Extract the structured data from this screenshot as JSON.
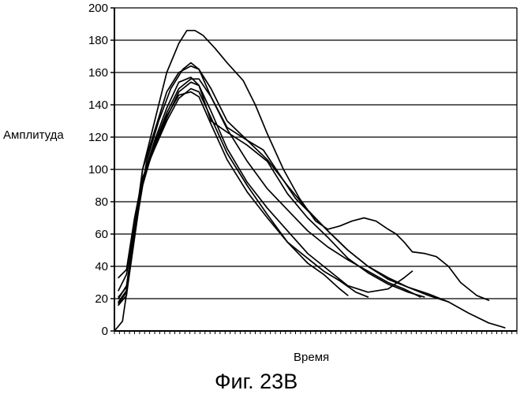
{
  "chart_data": {
    "type": "line",
    "title": "",
    "caption": "Фиг. 23B",
    "xlabel": "Время",
    "ylabel": "Амплитуда",
    "ylim": [
      0,
      200
    ],
    "yticks": [
      0,
      20,
      40,
      60,
      80,
      100,
      120,
      140,
      160,
      180,
      200
    ],
    "xlim": [
      0,
      100
    ],
    "x_tick_count": 80,
    "grid": true,
    "legend": "none",
    "line_color": "#000000",
    "series": [
      {
        "points": [
          [
            1,
            33
          ],
          [
            3,
            38
          ],
          [
            5,
            70
          ],
          [
            7,
            95
          ],
          [
            10,
            113
          ],
          [
            13,
            130
          ],
          [
            16,
            144
          ],
          [
            19,
            150
          ],
          [
            21,
            148
          ],
          [
            24,
            132
          ],
          [
            28,
            110
          ],
          [
            33,
            90
          ],
          [
            38,
            72
          ],
          [
            43,
            55
          ],
          [
            48,
            42
          ],
          [
            52,
            35
          ],
          [
            56,
            26
          ],
          [
            58,
            22
          ]
        ]
      },
      {
        "points": [
          [
            1,
            20
          ],
          [
            3,
            28
          ],
          [
            5,
            62
          ],
          [
            7,
            92
          ],
          [
            10,
            115
          ],
          [
            13,
            133
          ],
          [
            16,
            146
          ],
          [
            19,
            148
          ],
          [
            21,
            145
          ],
          [
            24,
            128
          ],
          [
            28,
            106
          ],
          [
            33,
            86
          ],
          [
            38,
            70
          ],
          [
            43,
            55
          ],
          [
            48,
            45
          ],
          [
            52,
            37
          ],
          [
            56,
            31
          ],
          [
            60,
            24
          ],
          [
            63,
            21
          ]
        ]
      },
      {
        "points": [
          [
            1,
            25
          ],
          [
            3,
            35
          ],
          [
            5,
            65
          ],
          [
            7,
            93
          ],
          [
            10,
            114
          ],
          [
            13,
            132
          ],
          [
            16,
            148
          ],
          [
            19,
            154
          ],
          [
            21,
            152
          ],
          [
            24,
            136
          ],
          [
            28,
            113
          ],
          [
            33,
            92
          ],
          [
            38,
            76
          ],
          [
            43,
            62
          ],
          [
            48,
            48
          ],
          [
            53,
            38
          ],
          [
            58,
            28
          ],
          [
            63,
            24
          ],
          [
            68,
            26
          ],
          [
            72,
            33
          ],
          [
            74,
            37
          ]
        ]
      },
      {
        "points": [
          [
            1,
            18
          ],
          [
            3,
            25
          ],
          [
            5,
            60
          ],
          [
            7,
            90
          ],
          [
            10,
            116
          ],
          [
            13,
            135
          ],
          [
            16,
            150
          ],
          [
            19,
            156
          ],
          [
            21,
            156
          ],
          [
            24,
            145
          ],
          [
            28,
            125
          ],
          [
            33,
            105
          ],
          [
            38,
            88
          ],
          [
            43,
            75
          ],
          [
            48,
            62
          ],
          [
            53,
            52
          ],
          [
            58,
            44
          ],
          [
            63,
            37
          ],
          [
            68,
            30
          ],
          [
            72,
            26
          ],
          [
            76,
            21
          ]
        ]
      },
      {
        "points": [
          [
            1,
            21
          ],
          [
            3,
            27
          ],
          [
            5,
            63
          ],
          [
            7,
            94
          ],
          [
            10,
            118
          ],
          [
            13,
            138
          ],
          [
            16,
            154
          ],
          [
            19,
            157
          ],
          [
            21,
            152
          ],
          [
            24,
            130
          ],
          [
            28,
            123
          ],
          [
            33,
            115
          ],
          [
            38,
            105
          ],
          [
            43,
            85
          ],
          [
            48,
            70
          ],
          [
            53,
            58
          ],
          [
            58,
            45
          ],
          [
            63,
            36
          ],
          [
            68,
            29
          ],
          [
            73,
            24
          ],
          [
            77,
            21
          ]
        ]
      },
      {
        "points": [
          [
            1,
            17
          ],
          [
            3,
            24
          ],
          [
            5,
            64
          ],
          [
            7,
            100
          ],
          [
            10,
            124
          ],
          [
            13,
            148
          ],
          [
            16,
            160
          ],
          [
            19,
            164
          ],
          [
            21,
            162
          ],
          [
            24,
            150
          ],
          [
            28,
            130
          ],
          [
            33,
            118
          ],
          [
            38,
            106
          ],
          [
            43,
            90
          ],
          [
            48,
            75
          ],
          [
            53,
            62
          ],
          [
            58,
            50
          ],
          [
            63,
            40
          ],
          [
            68,
            32
          ],
          [
            73,
            27
          ],
          [
            78,
            23
          ],
          [
            83,
            18
          ]
        ]
      },
      {
        "points": [
          [
            0,
            0
          ],
          [
            2,
            6
          ],
          [
            4,
            40
          ],
          [
            6,
            75
          ],
          [
            8,
            105
          ],
          [
            11,
            130
          ],
          [
            14,
            150
          ],
          [
            17,
            162
          ],
          [
            19,
            166
          ],
          [
            21,
            162
          ],
          [
            24,
            145
          ],
          [
            28,
            126
          ],
          [
            33,
            118
          ],
          [
            37,
            112
          ],
          [
            41,
            97
          ],
          [
            45,
            82
          ],
          [
            49,
            72
          ],
          [
            53,
            62
          ],
          [
            58,
            50
          ],
          [
            63,
            40
          ],
          [
            68,
            33
          ],
          [
            73,
            27
          ],
          [
            78,
            22
          ],
          [
            83,
            18
          ],
          [
            88,
            11
          ],
          [
            93,
            5
          ],
          [
            97,
            2
          ]
        ]
      },
      {
        "points": [
          [
            1,
            16
          ],
          [
            3,
            22
          ],
          [
            5,
            60
          ],
          [
            7,
            100
          ],
          [
            10,
            130
          ],
          [
            13,
            160
          ],
          [
            16,
            178
          ],
          [
            18,
            186
          ],
          [
            20,
            186
          ],
          [
            22,
            183
          ],
          [
            25,
            175
          ],
          [
            28,
            166
          ],
          [
            32,
            155
          ],
          [
            35,
            140
          ],
          [
            38,
            122
          ],
          [
            42,
            100
          ],
          [
            46,
            82
          ],
          [
            50,
            68
          ],
          [
            53,
            63
          ],
          [
            56,
            65
          ],
          [
            59,
            68
          ],
          [
            62,
            70
          ],
          [
            65,
            68
          ],
          [
            68,
            63
          ],
          [
            70,
            60
          ],
          [
            72,
            55
          ],
          [
            74,
            49
          ],
          [
            77,
            48
          ],
          [
            80,
            46
          ],
          [
            83,
            40
          ],
          [
            86,
            30
          ],
          [
            90,
            22
          ],
          [
            93,
            19
          ]
        ]
      }
    ]
  }
}
